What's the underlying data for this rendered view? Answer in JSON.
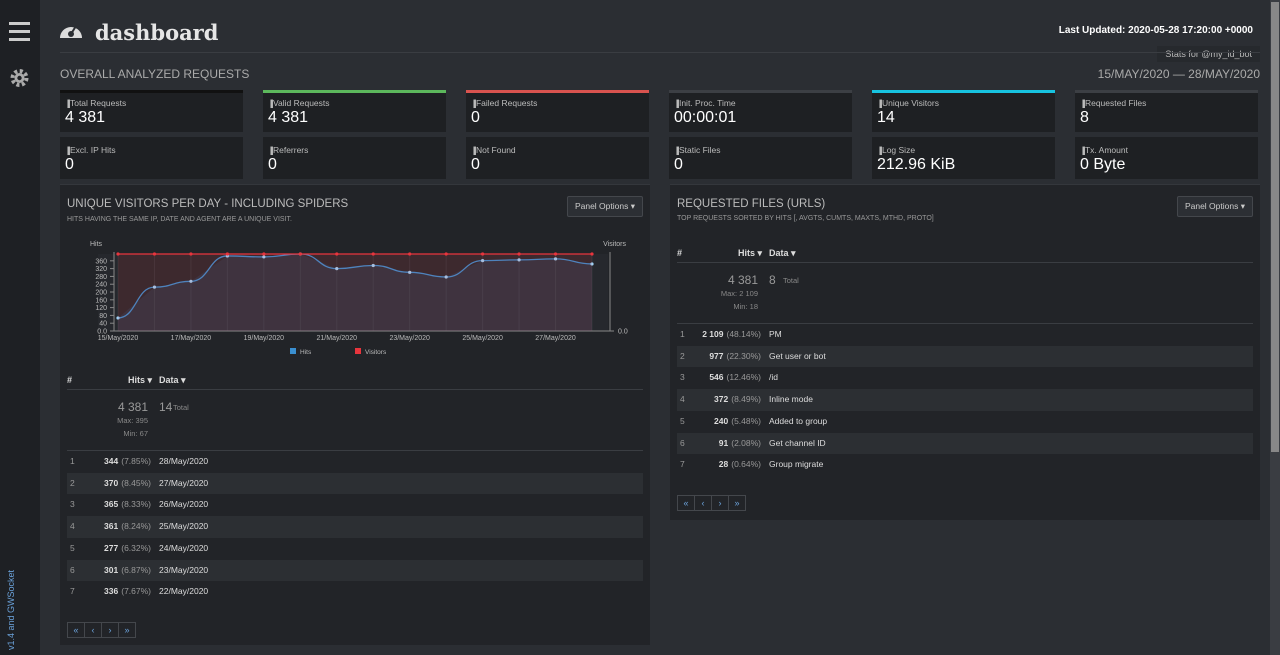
{
  "header": {
    "title": "dashboard",
    "last_updated": "Last Updated: 2020-05-28 17:20:00 +0000",
    "stats_for": "Stats for @my_id_bot"
  },
  "sidebar": {
    "footer": "v1.4 and GWSocket"
  },
  "overview": {
    "title": "OVERALL ANALYZED REQUESTS",
    "date_range": "15/MAY/2020 — 28/MAY/2020",
    "cards": [
      {
        "label": "Total Requests",
        "value": "4 381"
      },
      {
        "label": "Valid Requests",
        "value": "4 381"
      },
      {
        "label": "Failed Requests",
        "value": "0"
      },
      {
        "label": "Init. Proc. Time",
        "value": "00:00:01"
      },
      {
        "label": "Unique Visitors",
        "value": "14"
      },
      {
        "label": "Requested Files",
        "value": "8"
      },
      {
        "label": "Excl. IP Hits",
        "value": "0"
      },
      {
        "label": "Referrers",
        "value": "0"
      },
      {
        "label": "Not Found",
        "value": "0"
      },
      {
        "label": "Static Files",
        "value": "0"
      },
      {
        "label": "Log Size",
        "value": "212.96 KiB"
      },
      {
        "label": "Tx. Amount",
        "value": "0 Byte"
      }
    ]
  },
  "visitors_panel": {
    "title": "UNIQUE VISITORS PER DAY - INCLUDING SPIDERS",
    "subtitle": "HITS HAVING THE SAME IP, DATE AND AGENT ARE A UNIQUE VISIT.",
    "panel_options": "Panel Options",
    "chart_data": {
      "type": "line",
      "ylabel": "Hits",
      "y2label": "Visitors",
      "categories": [
        "15/May/2020",
        null,
        "17/May/2020",
        null,
        "19/May/2020",
        null,
        "21/May/2020",
        null,
        "23/May/2020",
        null,
        "25/May/2020",
        null,
        "27/May/2020",
        null
      ],
      "series": [
        {
          "name": "Hits",
          "color": "#3a8fd0",
          "values": [
            67,
            225,
            255,
            385,
            380,
            395,
            320,
            336,
            301,
            277,
            361,
            365,
            370,
            344
          ]
        },
        {
          "name": "Visitors",
          "color": "#e8353d",
          "axis": "y2",
          "values": [
            14,
            14,
            14,
            14,
            14,
            14,
            14,
            14,
            14,
            14,
            14,
            14,
            14,
            14
          ]
        }
      ],
      "ylim": [
        0,
        395
      ],
      "yticks": [
        {
          "value": 0,
          "label": "0.0"
        },
        40,
        80,
        120,
        160,
        200,
        240,
        280,
        320,
        360
      ],
      "y2lim": [
        0,
        14
      ],
      "y2ticks": [
        {
          "value": 0,
          "label": "0.0"
        }
      ]
    },
    "table": {
      "headers": [
        "#",
        "Hits",
        "Data"
      ],
      "summary": {
        "hits": "4 381",
        "max": "Max: 395",
        "min": "Min: 67",
        "data": "14",
        "data_label": "Total"
      },
      "rows": [
        [
          "1",
          "344",
          "(7.85%)",
          "28/May/2020"
        ],
        [
          "2",
          "370",
          "(8.45%)",
          "27/May/2020"
        ],
        [
          "3",
          "365",
          "(8.33%)",
          "26/May/2020"
        ],
        [
          "4",
          "361",
          "(8.24%)",
          "25/May/2020"
        ],
        [
          "5",
          "277",
          "(6.32%)",
          "24/May/2020"
        ],
        [
          "6",
          "301",
          "(6.87%)",
          "23/May/2020"
        ],
        [
          "7",
          "336",
          "(7.67%)",
          "22/May/2020"
        ]
      ]
    }
  },
  "files_panel": {
    "title": "REQUESTED FILES (URLS)",
    "subtitle": "TOP REQUESTS SORTED BY HITS [, AVGTS, CUMTS, MAXTS, MTHD, PROTO]",
    "panel_options": "Panel Options",
    "table": {
      "headers": [
        "#",
        "Hits",
        "Data"
      ],
      "summary": {
        "hits": "4 381",
        "max": "Max: 2 109",
        "min": "Min: 18",
        "data": "8",
        "data_label": "Total"
      },
      "rows": [
        [
          "1",
          "2 109",
          "(48.14%)",
          "PM"
        ],
        [
          "2",
          "977",
          "(22.30%)",
          "Get user or bot"
        ],
        [
          "3",
          "546",
          "(12.46%)",
          "/id"
        ],
        [
          "4",
          "372",
          "(8.49%)",
          "Inline mode"
        ],
        [
          "5",
          "240",
          "(5.48%)",
          "Added to group"
        ],
        [
          "6",
          "91",
          "(2.08%)",
          "Get channel ID"
        ],
        [
          "7",
          "28",
          "(0.64%)",
          "Group migrate"
        ]
      ]
    }
  }
}
